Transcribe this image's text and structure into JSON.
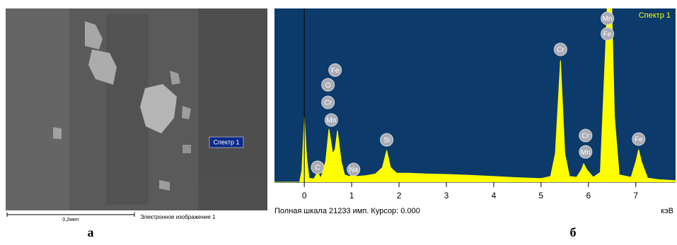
{
  "image_panel": {
    "marker_label": "Спектр 1",
    "scale_label": "0,2мкm",
    "caption": "Электронное изображение 1",
    "panel_label": "а"
  },
  "chart_data": {
    "type": "area",
    "legend": "top-right",
    "background": "#0b3a6b",
    "series": [
      {
        "name": "Спектр 1",
        "color": "#ffff00",
        "x": [
          -0.63,
          -0.1,
          -0.05,
          0,
          0.05,
          0.1,
          0.2,
          0.28,
          0.35,
          0.45,
          0.52,
          0.6,
          0.65,
          0.7,
          0.78,
          0.85,
          0.95,
          1.04,
          1.1,
          1.3,
          1.5,
          1.65,
          1.74,
          1.82,
          1.95,
          2.2,
          2.6,
          3.0,
          3.5,
          4.0,
          4.5,
          5.0,
          5.2,
          5.3,
          5.41,
          5.5,
          5.6,
          5.75,
          5.85,
          5.9,
          5.97,
          6.1,
          6.25,
          6.35,
          6.4,
          6.49,
          6.55,
          6.65,
          6.9,
          7.0,
          7.06,
          7.12,
          7.25,
          7.5,
          7.84
        ],
        "values": [
          0,
          0,
          1500,
          8000,
          3000,
          500,
          400,
          1200,
          500,
          2500,
          6500,
          3500,
          4000,
          6300,
          2500,
          900,
          700,
          900,
          700,
          800,
          1000,
          1800,
          3900,
          1800,
          1100,
          1100,
          1000,
          950,
          850,
          700,
          550,
          450,
          700,
          3500,
          14900,
          3500,
          700,
          600,
          1500,
          2250,
          1500,
          600,
          1200,
          15000,
          22000,
          22000,
          8000,
          900,
          600,
          2500,
          4000,
          2500,
          500,
          300,
          200
        ]
      }
    ],
    "xlim": [
      -0.63,
      7.84
    ],
    "xticks": [
      0,
      1,
      2,
      3,
      4,
      5,
      6,
      7
    ],
    "ylim": [
      0,
      21233
    ],
    "cursor": 0,
    "annotations": [
      {
        "text": "C",
        "x": 0.28,
        "y": 1810
      },
      {
        "text": "Mn",
        "x": 0.57,
        "y": 7600
      },
      {
        "text": "Cr",
        "x": 0.5,
        "y": 9750
      },
      {
        "text": "O",
        "x": 0.5,
        "y": 11900
      },
      {
        "text": "Fe",
        "x": 0.65,
        "y": 13700
      },
      {
        "text": "Na",
        "x": 1.04,
        "y": 1550
      },
      {
        "text": "Si",
        "x": 1.74,
        "y": 5180
      },
      {
        "text": "Cr",
        "x": 5.41,
        "y": 16230
      },
      {
        "text": "Cr",
        "x": 5.94,
        "y": 5700
      },
      {
        "text": "Mn",
        "x": 5.94,
        "y": 3700
      },
      {
        "text": "Fe",
        "x": 6.4,
        "y": 18130
      },
      {
        "text": "Mn",
        "x": 6.4,
        "y": 20020
      },
      {
        "text": "Fe",
        "x": 7.06,
        "y": 5270
      }
    ],
    "footer": "Полная шкала 21233 имп. Курсор: 0.000",
    "xlabel": "кэВ",
    "panel_label": "б"
  }
}
